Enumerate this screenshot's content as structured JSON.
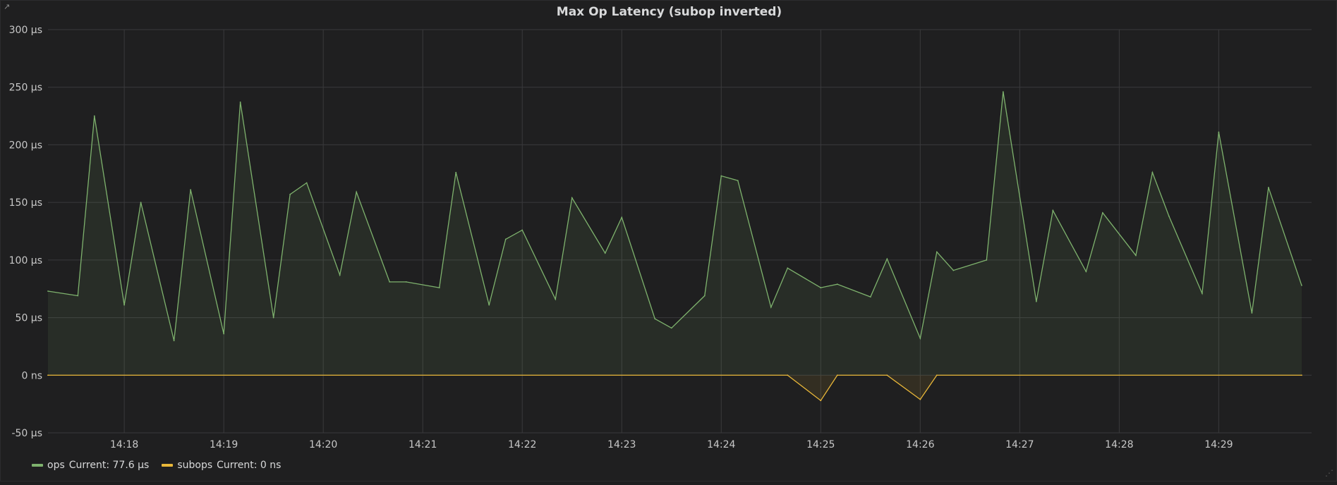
{
  "panel": {
    "title": "Max Op Latency (subop inverted)",
    "link_icon": "external-link-icon",
    "resize_icon": "resize-handle-icon"
  },
  "legend": {
    "items": [
      {
        "name": "ops",
        "current": "Current: 77.6 µs",
        "color": "#7eb26d"
      },
      {
        "name": "subops",
        "current": "Current: 0 ns",
        "color": "#eab839"
      }
    ]
  },
  "chart_data": {
    "type": "line",
    "title": "Max Op Latency (subop inverted)",
    "xlabel": "",
    "ylabel": "",
    "x_ticks": [
      "14:18",
      "14:19",
      "14:20",
      "14:21",
      "14:22",
      "14:23",
      "14:24",
      "14:25",
      "14:26",
      "14:27",
      "14:28",
      "14:29"
    ],
    "y_ticks": [
      "300 µs",
      "250 µs",
      "200 µs",
      "150 µs",
      "100 µs",
      "50 µs",
      "0 ns",
      "-50 µs"
    ],
    "ylim": [
      -50,
      300
    ],
    "xlim": [
      "14:17:14",
      "14:29:56"
    ],
    "grid": true,
    "legend_position": "bottom-left",
    "series": [
      {
        "name": "ops",
        "color": "#7eb26d",
        "fill": true,
        "x": [
          "14:17:14",
          "14:17:32",
          "14:17:42",
          "14:18:00",
          "14:18:10",
          "14:18:30",
          "14:18:40",
          "14:19:00",
          "14:19:10",
          "14:19:30",
          "14:19:40",
          "14:19:50",
          "14:20:10",
          "14:20:20",
          "14:20:40",
          "14:20:50",
          "14:21:10",
          "14:21:20",
          "14:21:40",
          "14:21:50",
          "14:22:00",
          "14:22:20",
          "14:22:30",
          "14:22:50",
          "14:23:00",
          "14:23:20",
          "14:23:30",
          "14:23:50",
          "14:24:00",
          "14:24:10",
          "14:24:30",
          "14:24:40",
          "14:25:00",
          "14:25:10",
          "14:25:30",
          "14:25:40",
          "14:26:00",
          "14:26:10",
          "14:26:20",
          "14:26:40",
          "14:26:50",
          "14:27:10",
          "14:27:20",
          "14:27:40",
          "14:27:50",
          "14:28:10",
          "14:28:20",
          "14:28:30",
          "14:28:50",
          "14:29:00",
          "14:29:20",
          "14:29:30",
          "14:29:50"
        ],
        "values": [
          73,
          69,
          225,
          61,
          150,
          30,
          161,
          36,
          237,
          50,
          157,
          167,
          87,
          159,
          81,
          81,
          76,
          176,
          61,
          118,
          126,
          66,
          154,
          106,
          137,
          49,
          41,
          69,
          173,
          169,
          59,
          93,
          76,
          79,
          68,
          101,
          32,
          107,
          91,
          100,
          246,
          64,
          143,
          90,
          141,
          104,
          176,
          138,
          71,
          211,
          54,
          163,
          78
        ]
      },
      {
        "name": "subops",
        "color": "#eab839",
        "fill": true,
        "x": [
          "14:17:14",
          "14:24:40",
          "14:25:00",
          "14:25:10",
          "14:25:40",
          "14:26:00",
          "14:26:10",
          "14:29:50"
        ],
        "values": [
          0,
          0,
          -22,
          0,
          0,
          -21,
          0,
          0
        ]
      }
    ]
  }
}
